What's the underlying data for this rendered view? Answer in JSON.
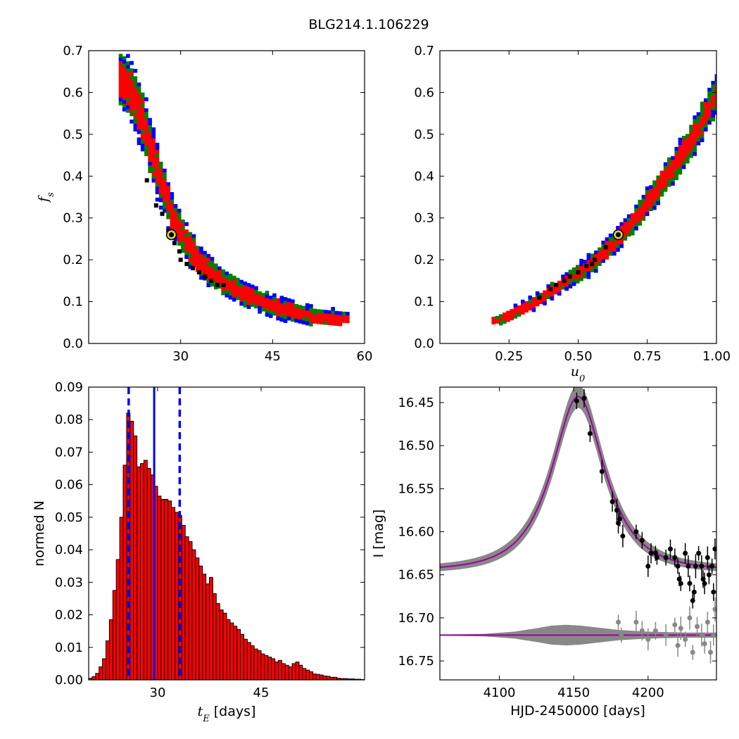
{
  "figure_title": "BLG214.1.106229",
  "chart_data": [
    {
      "id": "fs_vs_tE",
      "type": "heatmap",
      "xlabel": "",
      "ylabel": "f_s",
      "ylabel_main": "f",
      "ylabel_sub": "s",
      "xlim": [
        15,
        60
      ],
      "ylim": [
        0.0,
        0.7
      ],
      "xticks": [
        "30",
        "45",
        "60"
      ],
      "xtick_values": [
        30,
        45,
        60
      ],
      "yticks": [
        "0.0",
        "0.1",
        "0.2",
        "0.3",
        "0.4",
        "0.5",
        "0.6",
        "0.7"
      ],
      "ytick_values": [
        0,
        0.1,
        0.2,
        0.3,
        0.4,
        0.5,
        0.6,
        0.7
      ],
      "contour_colors": {
        "outer": "#0000ff",
        "middle": "#008000",
        "inner": "#ff0000",
        "samples": "#000000"
      },
      "best_fit": {
        "x": 28.5,
        "y": 0.26,
        "color": "#d4c84a"
      },
      "ridge": [
        [
          20.5,
          0.64
        ],
        [
          21.5,
          0.62
        ],
        [
          22.5,
          0.59
        ],
        [
          24,
          0.53
        ],
        [
          25.5,
          0.45
        ],
        [
          27,
          0.38
        ],
        [
          28.5,
          0.32
        ],
        [
          30,
          0.27
        ],
        [
          32,
          0.22
        ],
        [
          34,
          0.185
        ],
        [
          37,
          0.15
        ],
        [
          40,
          0.125
        ],
        [
          44,
          0.1
        ],
        [
          48,
          0.08
        ],
        [
          52,
          0.065
        ],
        [
          57,
          0.058
        ]
      ],
      "samples": [
        [
          24.5,
          0.39
        ],
        [
          27,
          0.31
        ],
        [
          28,
          0.27
        ],
        [
          29,
          0.24
        ],
        [
          29.8,
          0.22
        ],
        [
          30,
          0.2
        ],
        [
          31,
          0.19
        ],
        [
          32,
          0.18
        ],
        [
          33,
          0.17
        ],
        [
          34,
          0.16
        ],
        [
          35,
          0.15
        ],
        [
          36,
          0.14
        ],
        [
          37,
          0.14
        ],
        [
          26,
          0.33
        ]
      ]
    },
    {
      "id": "fs_vs_u0",
      "type": "heatmap",
      "xlabel": "u_0",
      "xlabel_main": "u",
      "xlabel_sub": "0",
      "ylabel": "",
      "xlim": [
        0.0,
        1.0
      ],
      "ylim": [
        0.0,
        0.7
      ],
      "xticks": [
        "0.25",
        "0.50",
        "0.75",
        "1.00"
      ],
      "xtick_values": [
        0.25,
        0.5,
        0.75,
        1.0
      ],
      "yticks": [
        "0.0",
        "0.1",
        "0.2",
        "0.3",
        "0.4",
        "0.5",
        "0.6",
        "0.7"
      ],
      "ytick_values": [
        0,
        0.1,
        0.2,
        0.3,
        0.4,
        0.5,
        0.6,
        0.7
      ],
      "contour_colors": {
        "outer": "#0000ff",
        "middle": "#008000",
        "inner": "#ff0000",
        "samples": "#000000"
      },
      "best_fit": {
        "x": 0.645,
        "y": 0.26,
        "color": "#d4c84a"
      },
      "ridge": [
        [
          0.2,
          0.055
        ],
        [
          0.28,
          0.08
        ],
        [
          0.36,
          0.11
        ],
        [
          0.44,
          0.145
        ],
        [
          0.52,
          0.18
        ],
        [
          0.6,
          0.225
        ],
        [
          0.68,
          0.28
        ],
        [
          0.76,
          0.35
        ],
        [
          0.84,
          0.42
        ],
        [
          0.92,
          0.5
        ],
        [
          1.0,
          0.6
        ]
      ],
      "samples": [
        [
          0.36,
          0.11
        ],
        [
          0.4,
          0.13
        ],
        [
          0.42,
          0.14
        ],
        [
          0.45,
          0.15
        ],
        [
          0.5,
          0.17
        ],
        [
          0.53,
          0.185
        ],
        [
          0.56,
          0.2
        ],
        [
          0.6,
          0.23
        ],
        [
          0.55,
          0.19
        ],
        [
          0.47,
          0.16
        ]
      ]
    },
    {
      "id": "tE_histogram",
      "type": "bar",
      "xlabel_main": "t",
      "xlabel_sub": "E",
      "xlabel_unit": " [days]",
      "xlabel": "t_E  [days]",
      "ylabel": "normed N",
      "xlim": [
        20,
        60
      ],
      "ylim": [
        0.0,
        0.09
      ],
      "xticks": [
        "30",
        "45"
      ],
      "xtick_values": [
        30,
        45
      ],
      "yticks": [
        "0.00",
        "0.01",
        "0.02",
        "0.03",
        "0.04",
        "0.05",
        "0.06",
        "0.07",
        "0.08",
        "0.09"
      ],
      "ytick_values": [
        0,
        0.01,
        0.02,
        0.03,
        0.04,
        0.05,
        0.06,
        0.07,
        0.08,
        0.09
      ],
      "bar_color": "#ff0000",
      "bin_start": 20,
      "bin_width": 0.5,
      "values": [
        0.0005,
        0.001,
        0.002,
        0.004,
        0.0065,
        0.012,
        0.0185,
        0.0275,
        0.037,
        0.05,
        0.066,
        0.082,
        0.0795,
        0.075,
        0.0655,
        0.0665,
        0.0675,
        0.065,
        0.063,
        0.0595,
        0.0565,
        0.0555,
        0.0555,
        0.055,
        0.053,
        0.0515,
        0.0505,
        0.0475,
        0.044,
        0.0425,
        0.04,
        0.0375,
        0.035,
        0.0325,
        0.0295,
        0.0315,
        0.0265,
        0.0235,
        0.0215,
        0.0205,
        0.0185,
        0.0175,
        0.0165,
        0.0155,
        0.014,
        0.0125,
        0.0115,
        0.0105,
        0.0095,
        0.009,
        0.008,
        0.0075,
        0.007,
        0.0065,
        0.0055,
        0.006,
        0.005,
        0.0045,
        0.004,
        0.005,
        0.0055,
        0.0045,
        0.0035,
        0.003,
        0.0025,
        0.0018,
        0.0017,
        0.0015,
        0.0012,
        0.0011,
        0.0008,
        0.0008,
        0.0005,
        0.0004,
        0.0004,
        0.0003,
        0.0003,
        0.0002,
        0.0002,
        0.0001
      ],
      "median": 29.5,
      "bounds": [
        25.8,
        33.2
      ],
      "line_color": "#0000ff"
    },
    {
      "id": "light_curve",
      "type": "line",
      "xlabel": "HJD-2450000 [days]",
      "ylabel": "I [mag]",
      "xlim": [
        4060,
        4246
      ],
      "ylim": [
        16.772,
        16.432
      ],
      "inverted_y": true,
      "xticks": [
        "4100",
        "4150",
        "4200"
      ],
      "xtick_values": [
        4100,
        4150,
        4200
      ],
      "yticks": [
        "16.45",
        "16.50",
        "16.55",
        "16.60",
        "16.65",
        "16.70",
        "16.75"
      ],
      "ytick_values": [
        16.45,
        16.5,
        16.55,
        16.6,
        16.65,
        16.7,
        16.75
      ],
      "model": {
        "baseline": 16.645,
        "peak_mag": 16.443,
        "t0": 4153,
        "tE": 29.5,
        "u0": 0.645,
        "color": "#a000a0",
        "band_color": "#888888"
      },
      "residual_baseline": 16.72,
      "points": [
        [
          4152,
          16.448
        ],
        [
          4157,
          16.445
        ],
        [
          4161,
          16.486
        ],
        [
          4169,
          16.53
        ],
        [
          4176,
          16.565
        ],
        [
          4179,
          16.575
        ],
        [
          4180,
          16.59
        ],
        [
          4181,
          16.585
        ],
        [
          4183,
          16.605
        ],
        [
          4192,
          16.6
        ],
        [
          4196,
          16.61
        ],
        [
          4200,
          16.64
        ],
        [
          4202,
          16.625
        ],
        [
          4205,
          16.625
        ],
        [
          4206,
          16.63
        ],
        [
          4212,
          16.63
        ],
        [
          4215,
          16.62
        ],
        [
          4218,
          16.63
        ],
        [
          4220,
          16.64
        ],
        [
          4221,
          16.655
        ],
        [
          4222,
          16.66
        ],
        [
          4225,
          16.625
        ],
        [
          4227,
          16.64
        ],
        [
          4228,
          16.66
        ],
        [
          4230,
          16.68
        ],
        [
          4231,
          16.67
        ],
        [
          4232,
          16.64
        ],
        [
          4234,
          16.625
        ],
        [
          4236,
          16.64
        ],
        [
          4237,
          16.655
        ],
        [
          4238,
          16.66
        ],
        [
          4240,
          16.63
        ],
        [
          4241,
          16.65
        ],
        [
          4243,
          16.64
        ],
        [
          4244,
          16.67
        ],
        [
          4245,
          16.62
        ]
      ],
      "residuals": [
        [
          4180,
          16.705
        ],
        [
          4182,
          16.72
        ],
        [
          4192,
          16.705
        ],
        [
          4196,
          16.715
        ],
        [
          4200,
          16.725
        ],
        [
          4205,
          16.715
        ],
        [
          4212,
          16.72
        ],
        [
          4218,
          16.708
        ],
        [
          4220,
          16.732
        ],
        [
          4222,
          16.712
        ],
        [
          4225,
          16.725
        ],
        [
          4228,
          16.7
        ],
        [
          4230,
          16.74
        ],
        [
          4233,
          16.71
        ],
        [
          4236,
          16.72
        ],
        [
          4238,
          16.73
        ],
        [
          4240,
          16.705
        ],
        [
          4242,
          16.74
        ],
        [
          4244,
          16.72
        ],
        [
          4245,
          16.69
        ]
      ],
      "residual_band": [
        [
          4060,
          0.0005
        ],
        [
          4090,
          0.0015
        ],
        [
          4110,
          0.004
        ],
        [
          4125,
          0.008
        ],
        [
          4135,
          0.011
        ],
        [
          4145,
          0.012
        ],
        [
          4155,
          0.011
        ],
        [
          4165,
          0.009
        ],
        [
          4180,
          0.006
        ],
        [
          4200,
          0.004
        ],
        [
          4225,
          0.003
        ],
        [
          4246,
          0.003
        ]
      ]
    }
  ]
}
